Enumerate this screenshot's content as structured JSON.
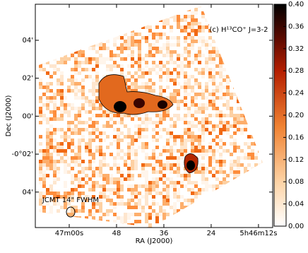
{
  "chart_data": {
    "type": "heatmap",
    "title": "(c) H¹³CO⁺  J=3-2",
    "annotation": "JCMT 14\" FWHM",
    "xlabel": "RA (J2000)",
    "ylabel": "Dec (J2000)",
    "xlim": [
      68.6,
      8.4
    ],
    "xticks": [
      {
        "value": 60,
        "label": "47m00s"
      },
      {
        "value": 48,
        "label": "48"
      },
      {
        "value": 36,
        "label": "36"
      },
      {
        "value": 24,
        "label": "24"
      },
      {
        "value": 12,
        "label": "5h46m12s"
      }
    ],
    "ylim": [
      -5.87,
      5.9
    ],
    "yticks": [
      {
        "value": 4,
        "label": "04'"
      },
      {
        "value": 2,
        "label": "02'"
      },
      {
        "value": 0,
        "label": "00'"
      },
      {
        "value": -2,
        "label": "-0°02'"
      },
      {
        "value": -4,
        "label": "04'"
      }
    ],
    "clim": [
      0,
      0.4
    ],
    "cticks": [
      {
        "value": 0,
        "label": "0.00"
      },
      {
        "value": 0.04,
        "label": "0.04"
      },
      {
        "value": 0.08,
        "label": "0.08"
      },
      {
        "value": 0.12,
        "label": "0.12"
      },
      {
        "value": 0.16,
        "label": "0.16"
      },
      {
        "value": 0.2,
        "label": "0.20"
      },
      {
        "value": 0.24,
        "label": "0.24"
      },
      {
        "value": 0.28,
        "label": "0.28"
      },
      {
        "value": 0.32,
        "label": "0.32"
      },
      {
        "value": 0.36,
        "label": "0.36"
      },
      {
        "value": 0.4,
        "label": "0.40"
      }
    ]
  }
}
